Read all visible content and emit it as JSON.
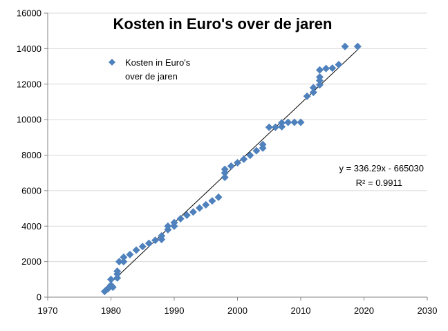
{
  "chart_data": {
    "type": "scatter",
    "title": "Kosten in Euro's over de jaren",
    "xlabel": "",
    "ylabel": "",
    "xlim": [
      1970,
      2030
    ],
    "ylim": [
      0,
      16000
    ],
    "xticks": [
      1970,
      1980,
      1990,
      2000,
      2010,
      2020,
      2030
    ],
    "yticks": [
      0,
      2000,
      4000,
      6000,
      8000,
      10000,
      12000,
      14000,
      16000
    ],
    "grid": "horizontal",
    "legend": {
      "placement": "top-left",
      "lines": [
        "Kosten in Euro's",
        "over de jaren"
      ]
    },
    "series": [
      {
        "color": "#4f81bd",
        "marker": "diamond",
        "points": [
          [
            1979,
            320
          ],
          [
            1979.5,
            460
          ],
          [
            1980,
            680
          ],
          [
            1980,
            1000
          ],
          [
            1980.3,
            560
          ],
          [
            1981,
            1080
          ],
          [
            1981,
            1300
          ],
          [
            1981,
            1460
          ],
          [
            1981.3,
            2000
          ],
          [
            1982,
            2000
          ],
          [
            1982,
            2250
          ],
          [
            1983,
            2400
          ],
          [
            1984,
            2650
          ],
          [
            1985,
            2850
          ],
          [
            1986,
            3030
          ],
          [
            1987,
            3200
          ],
          [
            1988,
            3250
          ],
          [
            1988,
            3450
          ],
          [
            1989,
            3800
          ],
          [
            1989,
            4000
          ],
          [
            1990,
            4000
          ],
          [
            1990,
            4200
          ],
          [
            1991,
            4420
          ],
          [
            1992,
            4620
          ],
          [
            1993,
            4800
          ],
          [
            1994,
            5020
          ],
          [
            1995,
            5200
          ],
          [
            1996,
            5420
          ],
          [
            1997,
            5630
          ],
          [
            1998,
            6750
          ],
          [
            1998,
            7000
          ],
          [
            1998,
            7200
          ],
          [
            1999,
            7380
          ],
          [
            2000,
            7570
          ],
          [
            2001,
            7770
          ],
          [
            2002,
            7990
          ],
          [
            2003,
            8250
          ],
          [
            2004,
            8400
          ],
          [
            2004,
            8600
          ],
          [
            2005,
            9570
          ],
          [
            2006,
            9570
          ],
          [
            2007,
            9600
          ],
          [
            2007,
            9820
          ],
          [
            2008,
            9850
          ],
          [
            2009,
            9850
          ],
          [
            2010,
            9850
          ],
          [
            2011,
            11320
          ],
          [
            2012,
            11540
          ],
          [
            2012,
            11800
          ],
          [
            2013,
            11960
          ],
          [
            2013,
            12200
          ],
          [
            2013,
            12400
          ],
          [
            2013,
            12800
          ],
          [
            2014,
            12880
          ],
          [
            2015,
            12900
          ],
          [
            2016,
            13100
          ],
          [
            2017,
            14120
          ],
          [
            2019,
            14120
          ]
        ]
      }
    ],
    "trendline": {
      "slope": 336.29,
      "intercept": -665030,
      "x_range": [
        1979,
        2019
      ],
      "color": "#000000",
      "equation": "y = 336.29x - 665030",
      "r_squared": "R² = 0.9911"
    }
  }
}
